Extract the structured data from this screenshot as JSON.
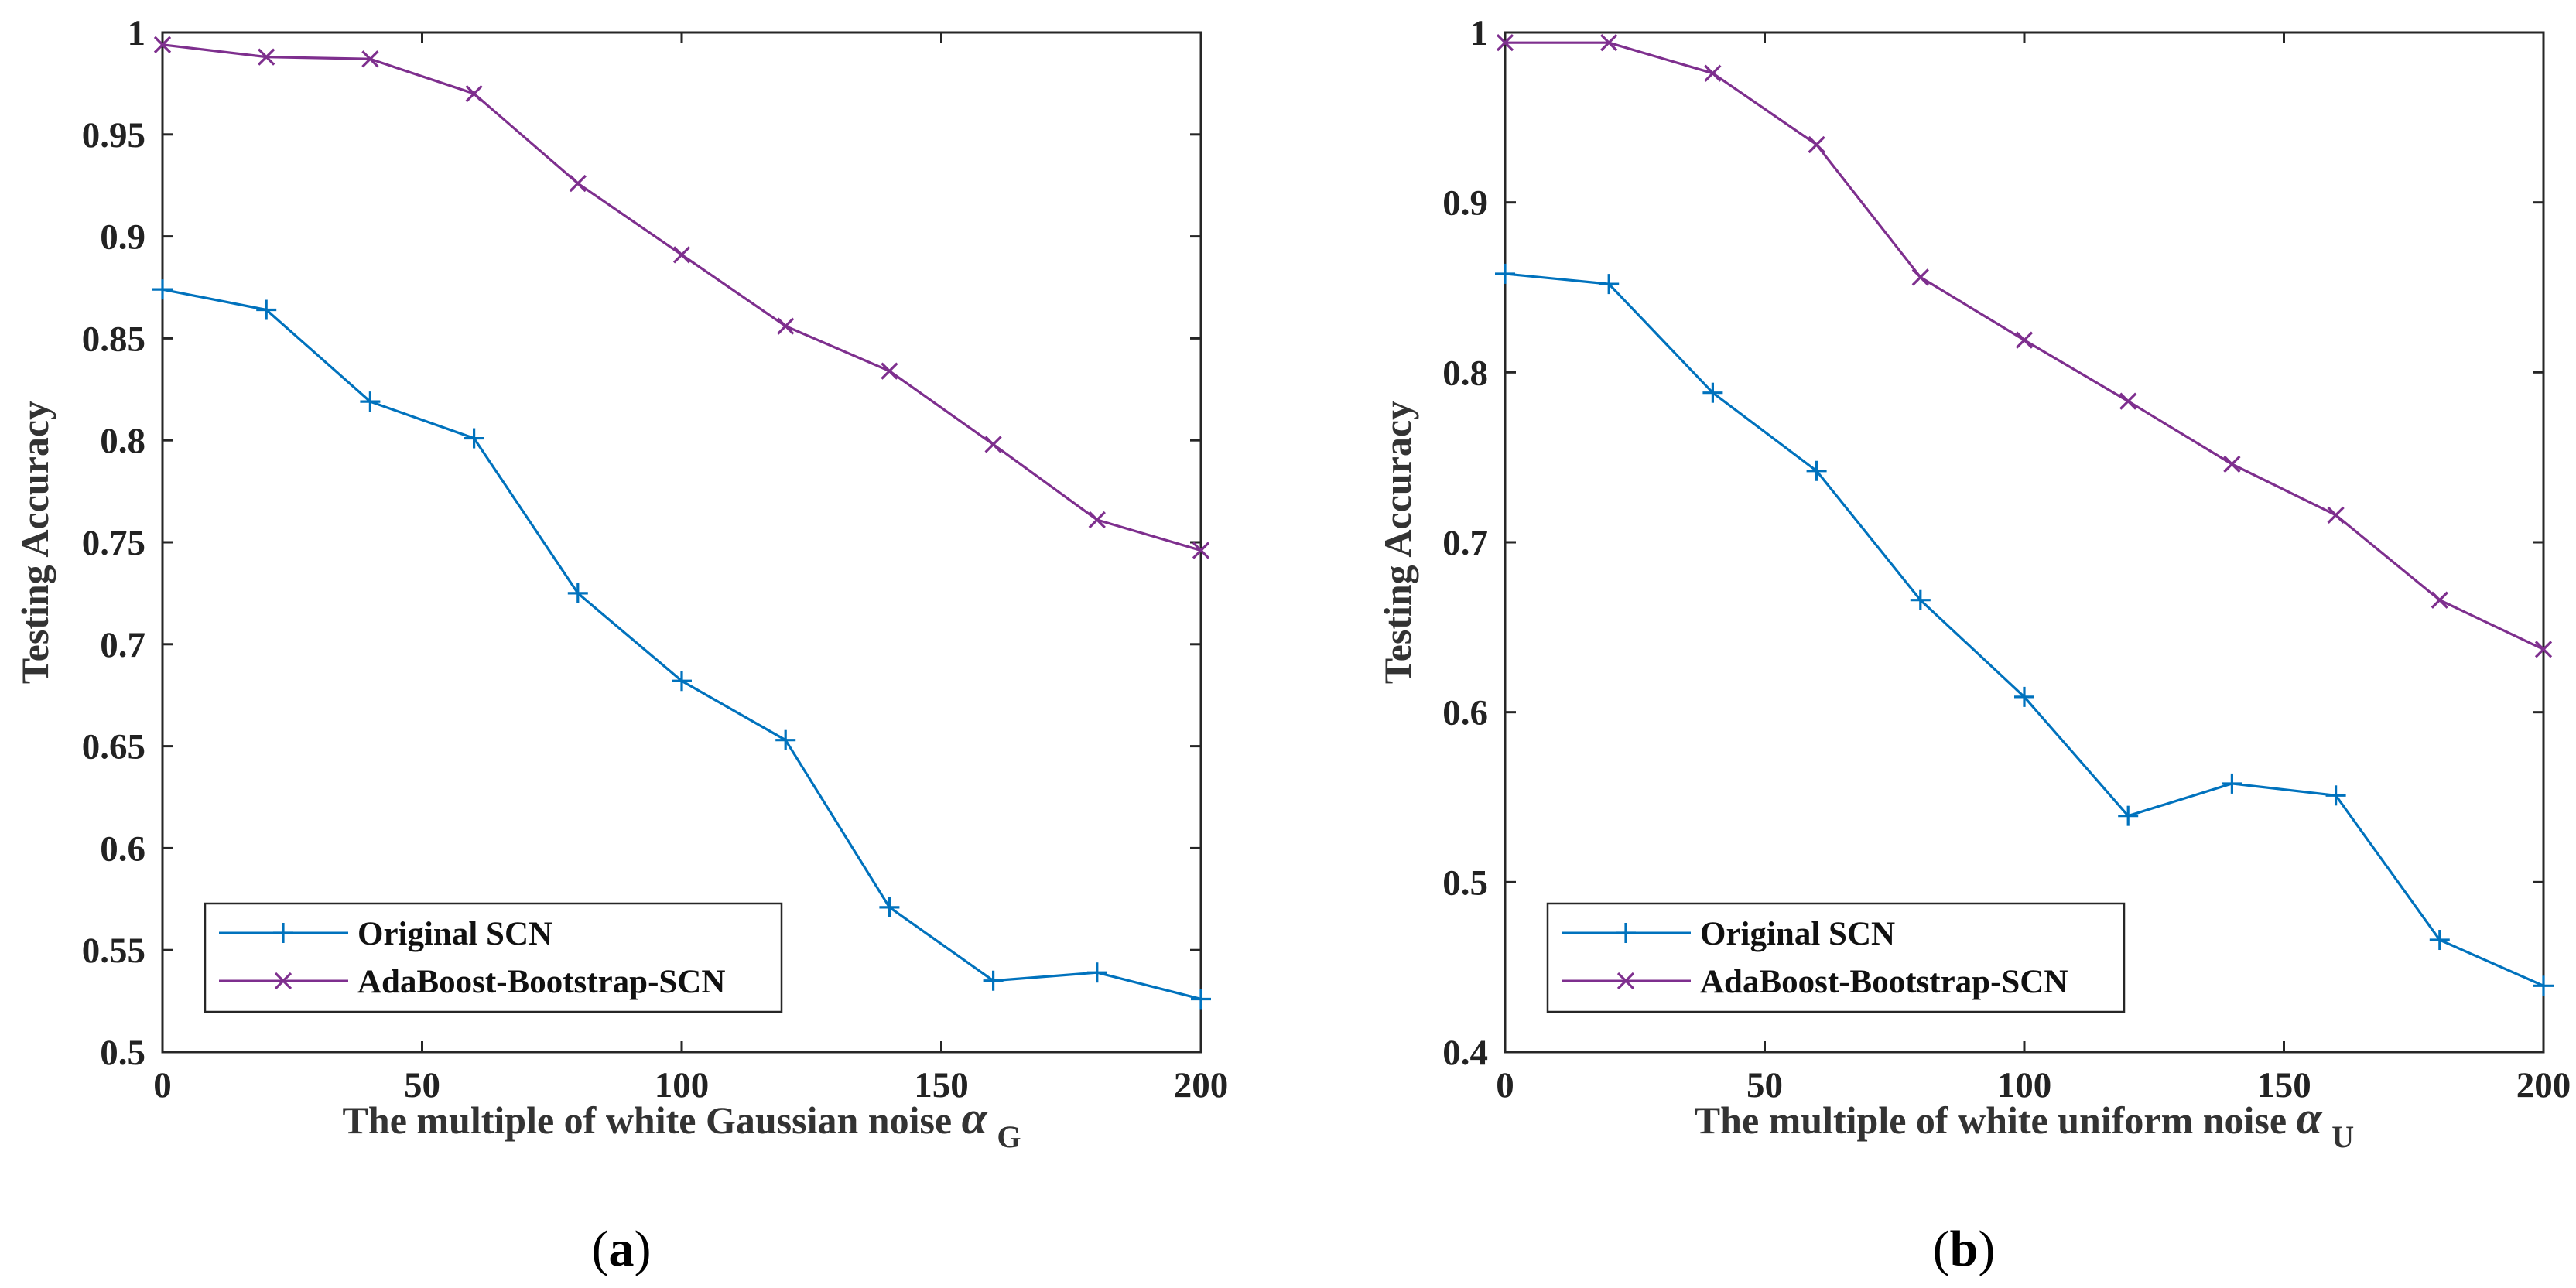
{
  "colors": {
    "original": "#0072BD",
    "adaboost": "#7E2F8E",
    "axis": "#262626"
  },
  "chart_data": [
    {
      "type": "line",
      "panel_label": "a",
      "xlabel": "The multiple of white Gaussian noise",
      "xlabel_symbol": "α",
      "xlabel_subscript": "G",
      "ylabel": "Testing Accuracy",
      "xlim": [
        0,
        200
      ],
      "ylim": [
        0.5,
        1
      ],
      "xticks": [
        0,
        50,
        100,
        150,
        200
      ],
      "xtick_labels": [
        "0",
        "50",
        "100",
        "150",
        "200"
      ],
      "yticks": [
        0.5,
        0.55,
        0.6,
        0.65,
        0.7,
        0.75,
        0.8,
        0.85,
        0.9,
        0.95,
        1
      ],
      "ytick_labels": [
        "0.5",
        "0.55",
        "0.6",
        "0.65",
        "0.7",
        "0.75",
        "0.8",
        "0.85",
        "0.9",
        "0.95",
        "1"
      ],
      "legend_position": "bottom-left",
      "x": [
        0,
        20,
        40,
        60,
        80,
        100,
        120,
        140,
        160,
        180,
        200
      ],
      "series": [
        {
          "name": "Original SCN",
          "marker": "+",
          "values": [
            0.874,
            0.864,
            0.819,
            0.801,
            0.725,
            0.682,
            0.653,
            0.571,
            0.535,
            0.539,
            0.526
          ]
        },
        {
          "name": "AdaBoost-Bootstrap-SCN",
          "marker": "x",
          "values": [
            0.994,
            0.988,
            0.987,
            0.97,
            0.926,
            0.891,
            0.856,
            0.834,
            0.798,
            0.761,
            0.746
          ]
        }
      ]
    },
    {
      "type": "line",
      "panel_label": "b",
      "xlabel": "The multiple of white uniform noise",
      "xlabel_symbol": "α",
      "xlabel_subscript": "U",
      "ylabel": "Testing Accuracy",
      "xlim": [
        0,
        200
      ],
      "ylim": [
        0.4,
        1
      ],
      "xticks": [
        0,
        50,
        100,
        150,
        200
      ],
      "xtick_labels": [
        "0",
        "50",
        "100",
        "150",
        "200"
      ],
      "yticks": [
        0.4,
        0.5,
        0.6,
        0.7,
        0.8,
        0.9,
        1
      ],
      "ytick_labels": [
        "0.4",
        "0.5",
        "0.6",
        "0.7",
        "0.8",
        "0.9",
        "1"
      ],
      "legend_position": "bottom-left",
      "x": [
        0,
        20,
        40,
        60,
        80,
        100,
        120,
        140,
        160,
        180,
        200
      ],
      "series": [
        {
          "name": "Original SCN",
          "marker": "+",
          "values": [
            0.858,
            0.852,
            0.788,
            0.742,
            0.666,
            0.609,
            0.539,
            0.558,
            0.551,
            0.466,
            0.439
          ]
        },
        {
          "name": "AdaBoost-Bootstrap-SCN",
          "marker": "x",
          "values": [
            0.994,
            0.994,
            0.976,
            0.934,
            0.856,
            0.819,
            0.783,
            0.746,
            0.716,
            0.666,
            0.637
          ]
        }
      ]
    }
  ]
}
